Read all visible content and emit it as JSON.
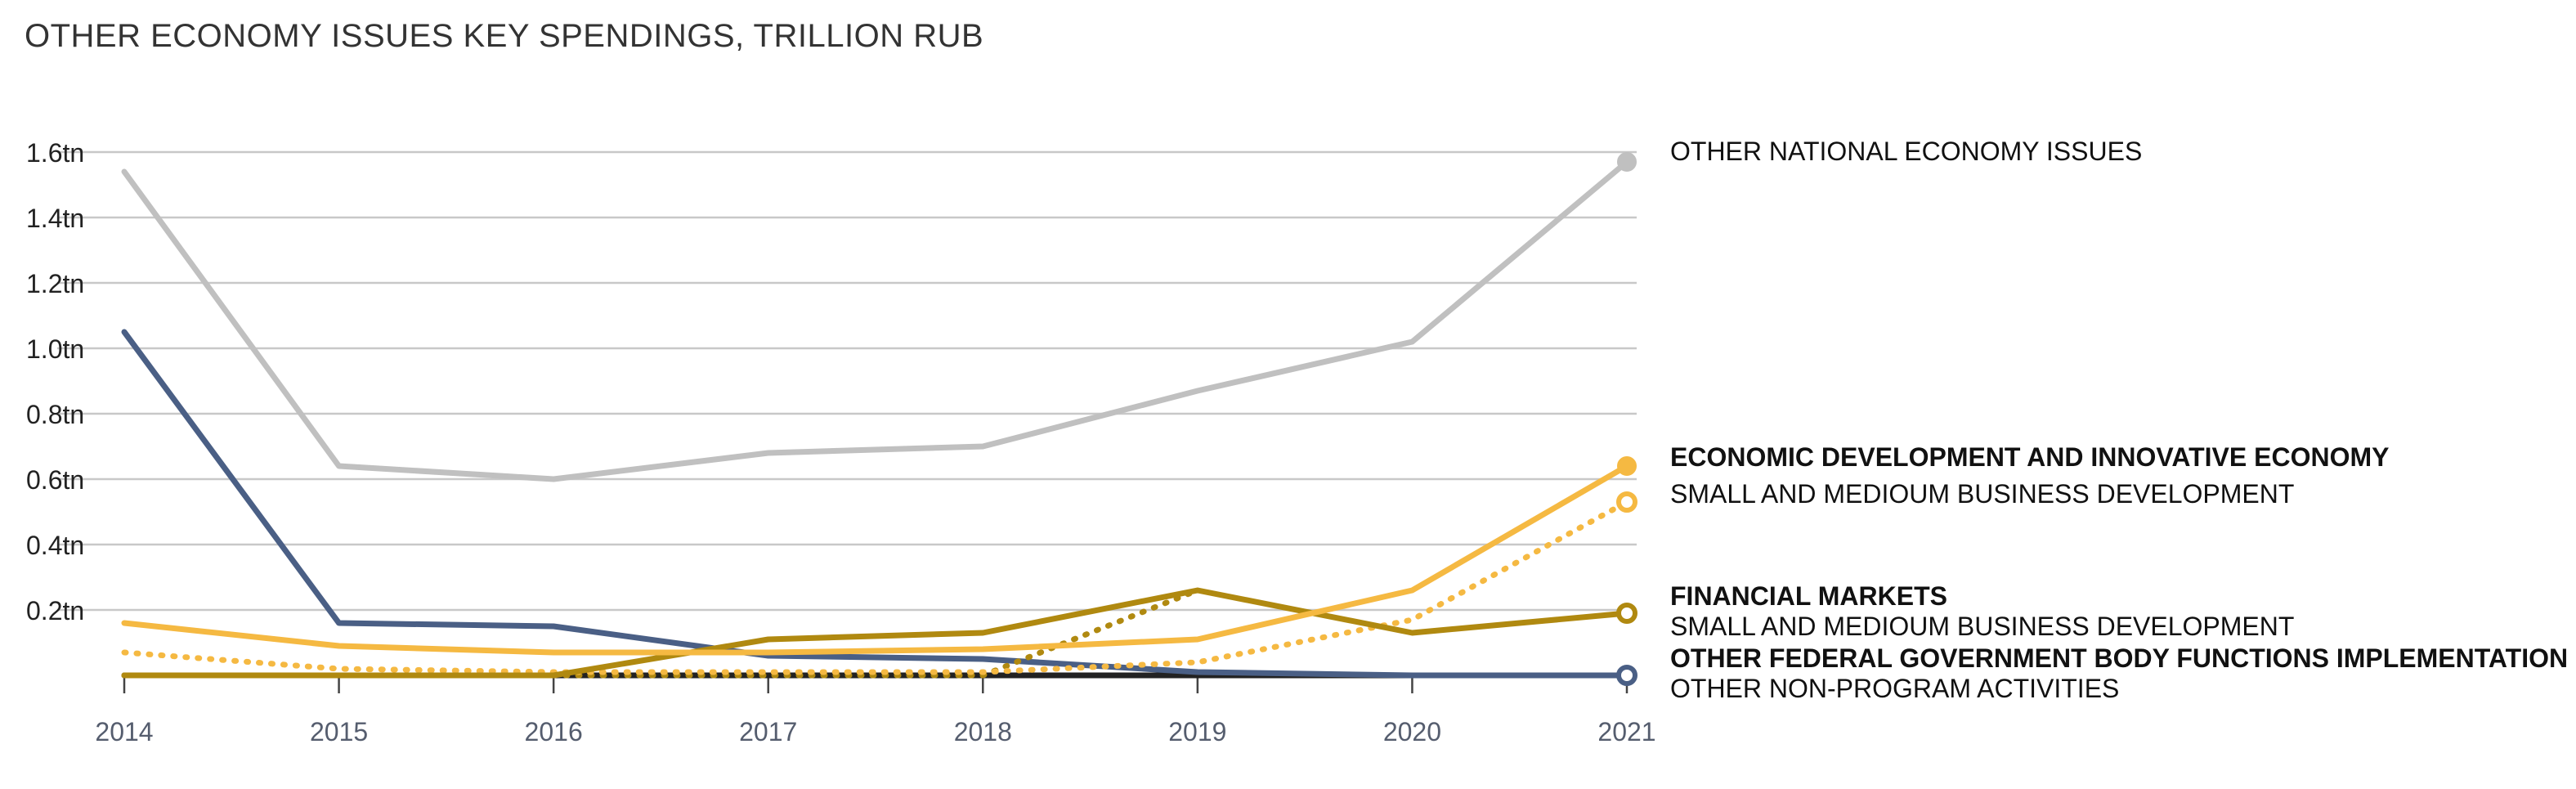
{
  "chart_data": {
    "type": "line",
    "title": "OTHER ECONOMY ISSUES KEY SPENDINGS, TRILLION RUB",
    "xlabel": "",
    "ylabel": "",
    "x": [
      "2014",
      "2015",
      "2016",
      "2017",
      "2018",
      "2019",
      "2020",
      "2021"
    ],
    "ylim": [
      0,
      1.6
    ],
    "yticks": [
      {
        "value": 0.2,
        "label": "0.2tn"
      },
      {
        "value": 0.4,
        "label": "0.4tn"
      },
      {
        "value": 0.6,
        "label": "0.6tn"
      },
      {
        "value": 0.8,
        "label": "0.8tn"
      },
      {
        "value": 1.0,
        "label": "1.0tn"
      },
      {
        "value": 1.2,
        "label": "1.2tn"
      },
      {
        "value": 1.4,
        "label": "1.4tn"
      },
      {
        "value": 1.6,
        "label": "1.6tn"
      }
    ],
    "grid": true,
    "legend": "right (end labels)",
    "series": [
      {
        "name": "OTHER NATIONAL ECONOMY ISSUES",
        "values": [
          1.54,
          0.64,
          0.6,
          0.68,
          0.7,
          0.87,
          1.02,
          1.57
        ],
        "color": "#c0c0c0",
        "style": "solid",
        "marker": "filled",
        "bold": false
      },
      {
        "name": "ECONOMIC DEVELOPMENT AND INNOVATIVE ECONOMY",
        "values": [
          0.16,
          0.09,
          0.07,
          0.07,
          0.08,
          0.11,
          0.26,
          0.64
        ],
        "color": "#f5b942",
        "style": "solid",
        "marker": "filled",
        "bold": true
      },
      {
        "name": "SMALL AND MEDIOUM BUSINESS DEVELOPMENT",
        "values": [
          0.07,
          0.02,
          0.01,
          0.01,
          0.01,
          0.04,
          0.17,
          0.53
        ],
        "color": "#f5b942",
        "style": "dotted",
        "marker": "open",
        "bold": false
      },
      {
        "name": "FINANCIAL MARKETS",
        "values": [
          0.0,
          0.0,
          0.0,
          0.11,
          0.13,
          0.26,
          0.13,
          0.19
        ],
        "color": "#b08910",
        "style": "solid",
        "marker": "open",
        "bold": true
      },
      {
        "name": "SMALL AND MEDIOUM BUSINESS DEVELOPMENT",
        "values": [
          0.0,
          0.0,
          0.0,
          0.0,
          0.0,
          0.26,
          null,
          null
        ],
        "color": "#b08910",
        "style": "dotted",
        "marker": "none",
        "bold": false
      },
      {
        "name": "OTHER FEDERAL GOVERNMENT BODY FUNCTIONS IMPLEMENTATION",
        "values": [
          1.05,
          0.16,
          0.15,
          0.06,
          0.05,
          0.01,
          0.0,
          0.0
        ],
        "color": "#4a5f85",
        "style": "solid",
        "marker": "open",
        "bold": true
      },
      {
        "name": "OTHER NON-PROGRAM ACTIVITIES",
        "values": [
          0.0,
          0.0,
          0.0,
          0.0,
          0.0,
          0.0,
          0.0,
          0.0
        ],
        "color": "#222222",
        "style": "solid",
        "marker": "none",
        "bold": false
      }
    ],
    "end_labels": [
      {
        "text": "OTHER NATIONAL ECONOMY ISSUES",
        "bold": false
      },
      {
        "text": "ECONOMIC DEVELOPMENT AND INNOVATIVE ECONOMY",
        "bold": true
      },
      {
        "text": "SMALL AND MEDIOUM BUSINESS DEVELOPMENT",
        "bold": false
      },
      {
        "text": "FINANCIAL MARKETS",
        "bold": true
      },
      {
        "text": "SMALL AND MEDIOUM BUSINESS DEVELOPMENT",
        "bold": false
      },
      {
        "text": "OTHER FEDERAL GOVERNMENT BODY FUNCTIONS IMPLEMENTATION",
        "bold": true
      },
      {
        "text": "OTHER NON-PROGRAM ACTIVITIES",
        "bold": false
      }
    ]
  }
}
